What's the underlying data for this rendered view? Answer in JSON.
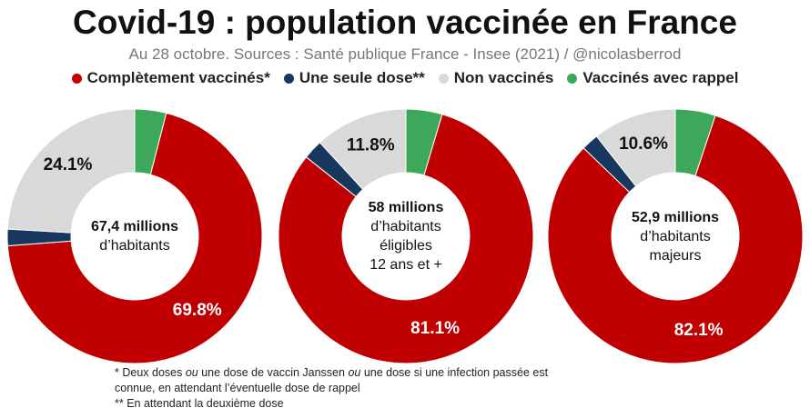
{
  "title": "Covid-19 : population vaccinée en France",
  "subtitle": "Au 28 octobre. Sources : Santé publique France - Insee (2021) / @nicolasberrod",
  "colors": {
    "complet": "#c00000",
    "une_dose": "#17375e",
    "non": "#d9d9d9",
    "rappel": "#3ea85a"
  },
  "legend": [
    {
      "label": "Complètement vaccinés*",
      "color": "#c00000"
    },
    {
      "label": "Une seule dose**",
      "color": "#17375e"
    },
    {
      "label": "Non vaccinés",
      "color": "#d9d9d9"
    },
    {
      "label": "Vaccinés avec rappel",
      "color": "#3ea85a"
    }
  ],
  "chart_data": [
    {
      "type": "pie",
      "title": "67,4 millions d'habitants",
      "center": {
        "bold": "67,4 millions",
        "lines": [
          "d’habitants"
        ]
      },
      "categories": [
        "Vaccinés avec rappel",
        "Complètement vaccinés",
        "Une seule dose",
        "Non vaccinés"
      ],
      "values": [
        4.0,
        69.8,
        2.1,
        24.1
      ],
      "data_labels": {
        "Complètement vaccinés": "69.8%",
        "Non vaccinés": "24.1%"
      }
    },
    {
      "type": "pie",
      "title": "58 millions d'habitants éligibles 12 ans et +",
      "center": {
        "bold": "58 millions",
        "lines": [
          "d’habitants",
          "éligibles",
          "12 ans et +"
        ]
      },
      "categories": [
        "Vaccinés avec rappel",
        "Complètement vaccinés",
        "Une seule dose",
        "Non vaccinés"
      ],
      "values": [
        4.6,
        81.1,
        2.5,
        11.8
      ],
      "data_labels": {
        "Complètement vaccinés": "81.1%",
        "Non vaccinés": "11.8%"
      }
    },
    {
      "type": "pie",
      "title": "52,9 millions d'habitants majeurs",
      "center": {
        "bold": "52,9 millions",
        "lines": [
          "d’habitants",
          "majeurs"
        ]
      },
      "categories": [
        "Vaccinés avec rappel",
        "Complètement vaccinés",
        "Une seule dose",
        "Non vaccinés"
      ],
      "values": [
        5.1,
        82.1,
        2.2,
        10.6
      ],
      "data_labels": {
        "Complètement vaccinés": "82.1%",
        "Non vaccinés": "10.6%"
      }
    }
  ],
  "notes": {
    "line1_a": "* Deux doses ",
    "line1_ou1": "ou",
    "line1_b": " une dose de vaccin Janssen ",
    "line1_ou2": "ou",
    "line1_c": " une dose si une infection passée est",
    "line2": "connue, en attendant l’éventuelle dose de rappel",
    "line3": "** En attendant la deuxième dose"
  }
}
